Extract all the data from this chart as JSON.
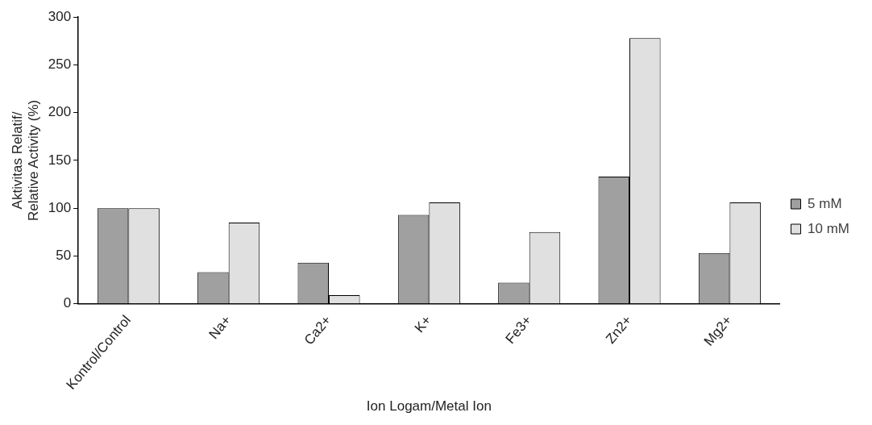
{
  "chart_data": {
    "type": "bar",
    "xlabel": "Ion Logam/Metal Ion",
    "ylabel": "Aktivitas Relatif/\nRelative Activity (%)",
    "categories": [
      "Kontrol/Control",
      "Na+",
      "Ca2+",
      "K+",
      "Fe3+",
      "Zn2+",
      "Mg2+"
    ],
    "series": [
      {
        "name": "5 mM",
        "color": "#a0a0a0",
        "values": [
          100,
          33,
          43,
          93,
          22,
          133,
          53
        ]
      },
      {
        "name": "10 mM",
        "color": "#e0e0e0",
        "values": [
          100,
          85,
          9,
          106,
          75,
          278,
          106
        ]
      }
    ],
    "ylim": [
      0,
      300
    ],
    "yticks": [
      0,
      50,
      100,
      150,
      200,
      250,
      300
    ],
    "grid": false,
    "legend": "right"
  }
}
